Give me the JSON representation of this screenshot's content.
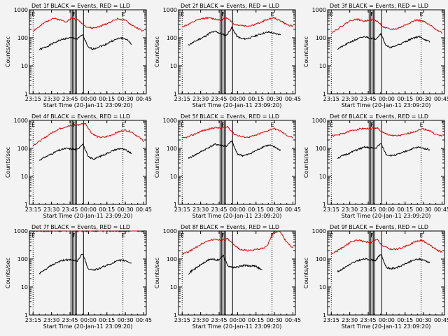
{
  "chart_data": [
    {
      "type": "line",
      "title": "Det 1f BLACK = Events, RED = LLD",
      "xlabel": "Start Time (20-Jan-11 23:09:20)",
      "ylabel": "Counts/sec",
      "y_scale": "log",
      "ylim": [
        1,
        1000
      ],
      "x_ticks": [
        "23:15",
        "23:30",
        "23:45",
        "00:00",
        "00:15",
        "00:30",
        "00:45"
      ],
      "y_ticks": [
        "1",
        "10",
        "100",
        "1000"
      ],
      "markers": [
        {
          "label": "E",
          "time": "23:15"
        },
        {
          "label": "F",
          "time": "23:48"
        },
        {
          "label": "E",
          "time": "00:28"
        }
      ],
      "series": [
        {
          "name": "BLACK",
          "color": "#000000",
          "start": "23:20",
          "end": "00:35",
          "values": [
            38,
            45,
            55,
            70,
            85,
            95,
            100,
            90,
            130,
            45,
            40,
            48,
            55,
            70,
            85,
            100,
            90,
            60
          ]
        },
        {
          "name": "RED",
          "color": "#e00000",
          "start": "23:15",
          "end": "00:45",
          "values": [
            180,
            250,
            380,
            500,
            450,
            380,
            500,
            420,
            260,
            220,
            240,
            300,
            380,
            480,
            430,
            300,
            220,
            170
          ]
        }
      ]
    },
    {
      "type": "line",
      "title": "Det 2f BLACK = Events, RED = LLD",
      "xlabel": "Start Time (20-Jan-11 23:09:20)",
      "ylabel": "Counts/sec",
      "y_scale": "log",
      "ylim": [
        1,
        1000
      ],
      "x_ticks": [
        "23:15",
        "23:30",
        "23:45",
        "00:00",
        "00:15",
        "00:30",
        "00:45"
      ],
      "y_ticks": [
        "1",
        "10",
        "100",
        "1000"
      ],
      "markers": [
        {
          "label": "E",
          "time": "23:15"
        },
        {
          "label": "F",
          "time": "23:48"
        },
        {
          "label": "E",
          "time": "00:28"
        }
      ],
      "series": [
        {
          "name": "BLACK",
          "color": "#000000",
          "start": "23:20",
          "end": "00:35",
          "values": [
            55,
            70,
            90,
            110,
            150,
            170,
            140,
            120,
            230,
            110,
            90,
            95,
            110,
            130,
            150,
            160,
            140,
            130
          ]
        },
        {
          "name": "RED",
          "color": "#e00000",
          "start": "23:15",
          "end": "00:45",
          "values": [
            250,
            300,
            400,
            480,
            520,
            470,
            430,
            520,
            300,
            280,
            260,
            290,
            350,
            450,
            520,
            420,
            300,
            260
          ]
        }
      ]
    },
    {
      "type": "line",
      "title": "Det 3f BLACK = Events, RED = LLD",
      "xlabel": "Start Time (20-Jan-11 23:09:20)",
      "ylabel": "Counts/sec",
      "y_scale": "log",
      "ylim": [
        1,
        1000
      ],
      "x_ticks": [
        "23:15",
        "23:30",
        "23:45",
        "00:00",
        "00:15",
        "00:30",
        "00:45"
      ],
      "y_ticks": [
        "1",
        "10",
        "100",
        "1000"
      ],
      "markers": [
        {
          "label": "E",
          "time": "23:15"
        },
        {
          "label": "F",
          "time": "23:48"
        },
        {
          "label": "E",
          "time": "00:28"
        }
      ],
      "series": [
        {
          "name": "BLACK",
          "color": "#000000",
          "start": "23:20",
          "end": "00:35",
          "values": [
            40,
            50,
            65,
            80,
            95,
            110,
            100,
            90,
            140,
            50,
            45,
            55,
            65,
            80,
            100,
            110,
            90,
            70
          ]
        },
        {
          "name": "RED",
          "color": "#e00000",
          "start": "23:15",
          "end": "00:45",
          "values": [
            150,
            210,
            300,
            420,
            460,
            390,
            450,
            400,
            240,
            200,
            210,
            260,
            340,
            430,
            400,
            290,
            210,
            150
          ]
        }
      ]
    },
    {
      "type": "line",
      "title": "Det 4f BLACK = Events, RED = LLD",
      "xlabel": "Start Time (20-Jan-11 23:09:20)",
      "ylabel": "Counts/sec",
      "y_scale": "log",
      "ylim": [
        1,
        1000
      ],
      "x_ticks": [
        "23:15",
        "23:30",
        "23:45",
        "00:00",
        "00:15",
        "00:30",
        "00:45"
      ],
      "y_ticks": [
        "1",
        "10",
        "100",
        "1000"
      ],
      "markers": [
        {
          "label": "E",
          "time": "23:15"
        },
        {
          "label": "F",
          "time": "23:48"
        },
        {
          "label": "E",
          "time": "00:28"
        }
      ],
      "series": [
        {
          "name": "BLACK",
          "color": "#000000",
          "start": "23:20",
          "end": "00:35",
          "values": [
            38,
            48,
            60,
            75,
            90,
            100,
            95,
            90,
            150,
            50,
            42,
            50,
            60,
            75,
            90,
            100,
            85,
            65
          ]
        },
        {
          "name": "RED",
          "color": "#e00000",
          "start": "23:15",
          "end": "00:45",
          "values": [
            130,
            180,
            260,
            380,
            500,
            600,
            650,
            700,
            800,
            350,
            250,
            250,
            300,
            380,
            450,
            400,
            280,
            180
          ]
        }
      ]
    },
    {
      "type": "line",
      "title": "Det 5f BLACK = Events, RED = LLD",
      "xlabel": "Start Time (20-Jan-11 23:09:20)",
      "ylabel": "Counts/sec",
      "y_scale": "log",
      "ylim": [
        1,
        1000
      ],
      "x_ticks": [
        "23:15",
        "23:30",
        "23:45",
        "00:00",
        "00:15",
        "00:30",
        "00:45"
      ],
      "y_ticks": [
        "1",
        "10",
        "100",
        "1000"
      ],
      "markers": [
        {
          "label": "E",
          "time": "23:15"
        },
        {
          "label": "F",
          "time": "23:48"
        },
        {
          "label": "E",
          "time": "00:28"
        }
      ],
      "series": [
        {
          "name": "BLACK",
          "color": "#000000",
          "start": "23:20",
          "end": "00:35",
          "values": [
            45,
            55,
            70,
            90,
            115,
            140,
            130,
            120,
            180,
            65,
            55,
            60,
            75,
            95,
            120,
            130,
            110,
            85
          ]
        },
        {
          "name": "RED",
          "color": "#e00000",
          "start": "23:15",
          "end": "00:45",
          "values": [
            230,
            260,
            330,
            420,
            480,
            560,
            520,
            600,
            320,
            270,
            250,
            280,
            340,
            420,
            520,
            430,
            300,
            240
          ]
        }
      ]
    },
    {
      "type": "line",
      "title": "Det 6f BLACK = Events, RED = LLD",
      "xlabel": "Start Time (20-Jan-11 23:09:20)",
      "ylabel": "Counts/sec",
      "y_scale": "log",
      "ylim": [
        1,
        1000
      ],
      "x_ticks": [
        "23:15",
        "23:30",
        "23:45",
        "00:00",
        "00:15",
        "00:30",
        "00:45"
      ],
      "y_ticks": [
        "1",
        "10",
        "100",
        "1000"
      ],
      "markers": [
        {
          "label": "E",
          "time": "23:15"
        },
        {
          "label": "F",
          "time": "23:48"
        },
        {
          "label": "E",
          "time": "00:28"
        }
      ],
      "series": [
        {
          "name": "BLACK",
          "color": "#000000",
          "start": "23:20",
          "end": "00:35",
          "values": [
            45,
            55,
            65,
            80,
            95,
            110,
            105,
            100,
            150,
            60,
            55,
            60,
            70,
            85,
            100,
            110,
            100,
            90
          ]
        },
        {
          "name": "RED",
          "color": "#e00000",
          "start": "23:15",
          "end": "00:45",
          "values": [
            280,
            300,
            350,
            420,
            480,
            520,
            500,
            550,
            350,
            300,
            280,
            300,
            350,
            420,
            500,
            440,
            320,
            270
          ]
        }
      ]
    },
    {
      "type": "line",
      "title": "Det 7f BLACK = Events, RED = LLD",
      "xlabel": "Start Time (20-Jan-11 23:09:20)",
      "ylabel": "Counts/sec",
      "y_scale": "log",
      "ylim": [
        1,
        1000
      ],
      "x_ticks": [
        "23:15",
        "23:30",
        "23:45",
        "00:00",
        "00:15",
        "00:30",
        "00:45"
      ],
      "y_ticks": [
        "1",
        "10",
        "100",
        "1000"
      ],
      "markers": [
        {
          "label": "E",
          "time": "23:15"
        },
        {
          "label": "F",
          "time": "23:48"
        },
        {
          "label": "E",
          "time": "00:28"
        }
      ],
      "series": [
        {
          "name": "BLACK",
          "color": "#000000",
          "start": "23:20",
          "end": "00:35",
          "values": [
            30,
            40,
            55,
            70,
            85,
            95,
            90,
            85,
            160,
            45,
            40,
            45,
            55,
            65,
            80,
            90,
            85,
            70
          ]
        },
        {
          "name": "RED",
          "color": "#e00000",
          "start": "23:15",
          "end": "00:45",
          "values": [
            1000,
            1000,
            1000,
            1000,
            1000,
            1000,
            1000,
            1000,
            1000,
            1000,
            1000,
            1000,
            1000,
            1000,
            1000,
            1000,
            1000,
            1000
          ]
        }
      ]
    },
    {
      "type": "line",
      "title": "Det 8f BLACK = Events, RED = LLD",
      "xlabel": "Start Time (20-Jan-11 23:09:20)",
      "ylabel": "Counts/sec",
      "y_scale": "log",
      "ylim": [
        1,
        1000
      ],
      "x_ticks": [
        "23:15",
        "23:30",
        "23:45",
        "00:00",
        "00:15",
        "00:30",
        "00:45"
      ],
      "y_ticks": [
        "1",
        "10",
        "100",
        "1000"
      ],
      "markers": [
        {
          "label": "E",
          "time": "23:15"
        },
        {
          "label": "F",
          "time": "23:48"
        },
        {
          "label": "E",
          "time": "00:28"
        }
      ],
      "series": [
        {
          "name": "BLACK",
          "color": "#000000",
          "start": "23:20",
          "end": "00:20",
          "values": [
            30,
            40,
            50,
            65,
            80,
            100,
            95,
            90,
            140,
            60,
            50,
            50,
            55,
            60,
            55,
            60,
            50,
            40
          ]
        },
        {
          "name": "RED",
          "color": "#e00000",
          "start": "23:15",
          "end": "00:45",
          "values": [
            150,
            180,
            250,
            350,
            450,
            500,
            480,
            520,
            300,
            220,
            200,
            210,
            230,
            280,
            900,
            1000,
            400,
            250
          ]
        }
      ]
    },
    {
      "type": "line",
      "title": "Det 9f BLACK = Events, RED = LLD",
      "xlabel": "Start Time (20-Jan-11 23:09:20)",
      "ylabel": "Counts/sec",
      "y_scale": "log",
      "ylim": [
        1,
        1000
      ],
      "x_ticks": [
        "23:15",
        "23:30",
        "23:45",
        "00:00",
        "00:15",
        "00:30",
        "00:45"
      ],
      "y_ticks": [
        "1",
        "10",
        "100",
        "1000"
      ],
      "markers": [
        {
          "label": "E",
          "time": "23:15"
        },
        {
          "label": "F",
          "time": "23:48"
        },
        {
          "label": "E",
          "time": "00:28"
        }
      ],
      "series": [
        {
          "name": "BLACK",
          "color": "#000000",
          "start": "23:20",
          "end": "00:35",
          "values": [
            35,
            45,
            60,
            75,
            90,
            100,
            95,
            90,
            150,
            50,
            45,
            50,
            60,
            75,
            90,
            100,
            90,
            75
          ]
        },
        {
          "name": "RED",
          "color": "#e00000",
          "start": "23:15",
          "end": "00:45",
          "values": [
            150,
            200,
            280,
            400,
            480,
            420,
            380,
            500,
            280,
            230,
            220,
            260,
            330,
            430,
            460,
            330,
            230,
            170
          ]
        }
      ]
    }
  ]
}
